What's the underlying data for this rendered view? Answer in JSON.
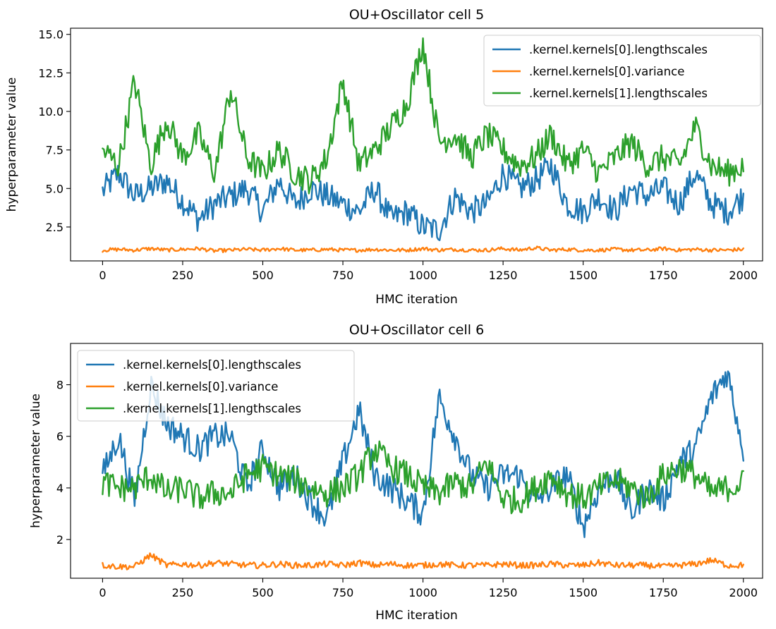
{
  "chart_data": [
    {
      "type": "line",
      "title": "OU+Oscillator cell 5",
      "xlabel": "HMC iteration",
      "ylabel": "hyperparameter value",
      "xlim": [
        -100,
        2060
      ],
      "ylim": [
        0.3,
        15.4
      ],
      "xticks": [
        0,
        250,
        500,
        750,
        1000,
        1250,
        1500,
        1750,
        2000
      ],
      "xtick_labels": [
        "0",
        "250",
        "500",
        "750",
        "1000",
        "1250",
        "1500",
        "1750",
        "2000"
      ],
      "yticks": [
        2.5,
        5.0,
        7.5,
        10.0,
        12.5,
        15.0
      ],
      "ytick_labels": [
        "2.5",
        "5.0",
        "7.5",
        "10.0",
        "12.5",
        "15.0"
      ],
      "legend": "upper right",
      "grid": false,
      "x": [
        0,
        50,
        100,
        150,
        200,
        250,
        300,
        350,
        400,
        450,
        500,
        550,
        600,
        650,
        700,
        750,
        800,
        850,
        900,
        950,
        1000,
        1050,
        1100,
        1150,
        1200,
        1250,
        1300,
        1350,
        1400,
        1450,
        1500,
        1550,
        1600,
        1650,
        1700,
        1750,
        1800,
        1850,
        1900,
        1950,
        2000
      ],
      "series": [
        {
          "name": ".kernel.kernels[0].lengthscales",
          "color": "#1f77b4",
          "values": [
            4.8,
            6.0,
            4.5,
            5.0,
            5.5,
            4.2,
            3.0,
            4.0,
            4.5,
            5.0,
            3.5,
            5.5,
            4.0,
            5.0,
            4.5,
            4.0,
            3.5,
            5.0,
            3.0,
            3.5,
            2.5,
            2.3,
            4.5,
            3.5,
            4.0,
            6.0,
            5.0,
            5.5,
            6.5,
            4.0,
            3.5,
            4.5,
            3.5,
            5.0,
            4.5,
            5.0,
            4.0,
            6.0,
            4.0,
            3.5,
            4.5
          ]
        },
        {
          "name": ".kernel.kernels[0].variance",
          "color": "#ff7f0e",
          "values": [
            1.0,
            1.05,
            1.0,
            1.1,
            1.0,
            1.05,
            1.1,
            0.95,
            1.0,
            1.05,
            1.0,
            1.1,
            1.0,
            1.0,
            1.05,
            1.0,
            1.0,
            1.05,
            1.0,
            1.0,
            1.1,
            1.0,
            1.05,
            1.0,
            1.0,
            1.1,
            1.0,
            1.15,
            1.0,
            1.05,
            1.0,
            1.0,
            1.05,
            1.0,
            1.0,
            1.1,
            1.0,
            1.05,
            1.0,
            1.0,
            1.05
          ]
        },
        {
          "name": ".kernel.kernels[1].lengthscales",
          "color": "#2ca02c",
          "values": [
            7.5,
            6.5,
            12.0,
            6.5,
            9.5,
            7.0,
            8.5,
            6.0,
            11.5,
            7.0,
            6.0,
            7.5,
            6.0,
            5.5,
            7.0,
            12.0,
            6.5,
            7.5,
            9.0,
            10.5,
            14.5,
            8.0,
            8.5,
            7.0,
            8.5,
            7.5,
            6.5,
            7.0,
            8.5,
            6.5,
            7.5,
            6.0,
            7.0,
            8.0,
            6.5,
            7.0,
            6.5,
            9.0,
            6.5,
            6.0,
            6.5
          ]
        }
      ]
    },
    {
      "type": "line",
      "title": "OU+Oscillator cell 6",
      "xlabel": "HMC iteration",
      "ylabel": "hyperparameter value",
      "xlim": [
        -100,
        2060
      ],
      "ylim": [
        0.5,
        9.6
      ],
      "xticks": [
        0,
        250,
        500,
        750,
        1000,
        1250,
        1500,
        1750,
        2000
      ],
      "xtick_labels": [
        "0",
        "250",
        "500",
        "750",
        "1000",
        "1250",
        "1500",
        "1750",
        "2000"
      ],
      "yticks": [
        2,
        4,
        6,
        8
      ],
      "ytick_labels": [
        "2",
        "4",
        "6",
        "8"
      ],
      "legend": "upper left",
      "grid": false,
      "x": [
        0,
        50,
        100,
        150,
        200,
        250,
        300,
        350,
        400,
        450,
        500,
        550,
        600,
        650,
        700,
        750,
        800,
        850,
        900,
        950,
        1000,
        1050,
        1100,
        1150,
        1200,
        1250,
        1300,
        1350,
        1400,
        1450,
        1500,
        1550,
        1600,
        1650,
        1700,
        1750,
        1800,
        1850,
        1900,
        1950,
        2000
      ],
      "series": [
        {
          "name": ".kernel.kernels[0].lengthscales",
          "color": "#1f77b4",
          "values": [
            4.5,
            6.0,
            3.5,
            8.0,
            6.5,
            6.0,
            5.5,
            6.0,
            6.0,
            4.0,
            5.5,
            4.0,
            4.5,
            3.5,
            2.8,
            5.0,
            7.0,
            4.5,
            4.0,
            3.5,
            3.0,
            7.5,
            6.0,
            4.5,
            4.0,
            4.5,
            4.5,
            3.5,
            4.0,
            4.5,
            2.5,
            4.0,
            4.5,
            3.0,
            4.0,
            3.5,
            5.0,
            5.5,
            7.5,
            8.5,
            5.5
          ]
        },
        {
          "name": ".kernel.kernels[0].variance",
          "color": "#ff7f0e",
          "values": [
            1.0,
            0.95,
            0.95,
            1.4,
            1.0,
            1.05,
            1.0,
            1.1,
            1.05,
            1.0,
            1.0,
            1.05,
            1.0,
            1.0,
            1.05,
            1.0,
            1.1,
            1.0,
            1.05,
            1.0,
            1.0,
            1.05,
            1.0,
            1.0,
            1.0,
            1.05,
            1.0,
            1.0,
            1.05,
            1.0,
            1.0,
            1.1,
            1.0,
            1.0,
            1.0,
            0.95,
            1.0,
            1.05,
            1.2,
            1.0,
            1.0
          ]
        },
        {
          "name": ".kernel.kernels[1].lengthscales",
          "color": "#2ca02c",
          "values": [
            4.2,
            4.0,
            4.0,
            4.5,
            3.8,
            4.0,
            3.6,
            3.8,
            3.8,
            4.5,
            4.8,
            4.5,
            4.3,
            4.0,
            3.8,
            4.0,
            4.5,
            5.5,
            4.8,
            4.5,
            4.0,
            3.8,
            4.2,
            4.0,
            5.0,
            3.6,
            3.5,
            4.0,
            4.5,
            3.8,
            3.6,
            4.0,
            4.3,
            4.0,
            3.6,
            4.5,
            4.8,
            4.5,
            3.8,
            4.0,
            4.2
          ]
        }
      ]
    }
  ]
}
